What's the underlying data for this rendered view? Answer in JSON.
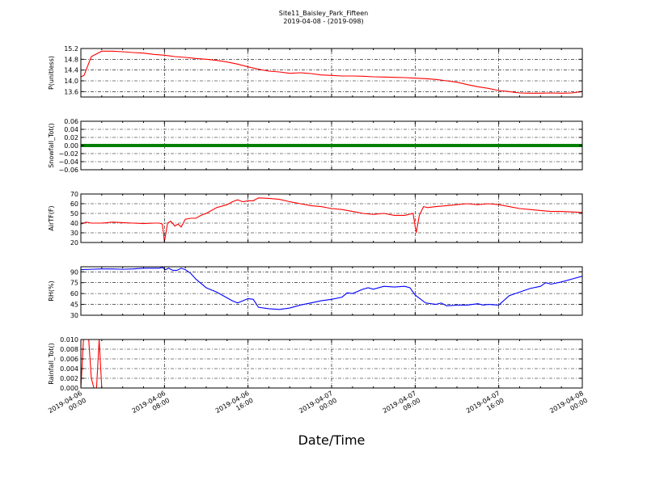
{
  "figure": {
    "title_line1": "Site11_Baisley_Park_Fifteen",
    "title_line2": "2019-04-08 - (2019-098)",
    "xlabel": "Date/Time"
  },
  "chart_data": [
    {
      "type": "line",
      "ylabel": "P(unitless)",
      "ylim": [
        13.4,
        15.2
      ],
      "yticks": [
        13.6,
        14.0,
        14.4,
        14.8,
        15.2
      ],
      "ytick_labels": [
        "13.6",
        "14.0",
        "14.4",
        "14.8",
        "15.2"
      ],
      "color": "#ff0000",
      "grid": true,
      "series": [
        {
          "x": [
            0,
            0.3,
            0.6,
            1,
            2,
            3,
            4,
            5,
            6,
            7,
            8,
            9,
            10,
            11,
            12,
            13,
            14,
            15,
            16,
            17,
            18,
            19,
            20,
            21,
            22,
            23,
            24,
            25,
            26,
            27,
            28,
            29,
            30,
            31,
            32,
            33,
            34,
            35,
            36,
            37,
            38,
            39,
            40,
            41,
            42,
            43,
            44,
            45,
            46,
            47,
            48
          ],
          "y": [
            14.15,
            14.2,
            14.5,
            14.9,
            15.1,
            15.1,
            15.08,
            15.05,
            15.03,
            14.98,
            14.95,
            14.9,
            14.87,
            14.83,
            14.8,
            14.76,
            14.7,
            14.62,
            14.52,
            14.43,
            14.36,
            14.33,
            14.28,
            14.3,
            14.27,
            14.22,
            14.2,
            14.18,
            14.18,
            14.17,
            14.15,
            14.14,
            14.13,
            14.12,
            14.1,
            14.08,
            14.05,
            14.0,
            13.95,
            13.86,
            13.78,
            13.72,
            13.64,
            13.6,
            13.55,
            13.54,
            13.54,
            13.55,
            13.54,
            13.55,
            13.6
          ]
        }
      ]
    },
    {
      "type": "line",
      "ylabel": "Snowfall_Tot()",
      "ylim": [
        -0.06,
        0.06
      ],
      "yticks": [
        -0.06,
        -0.04,
        -0.02,
        0.0,
        0.02,
        0.04,
        0.06
      ],
      "ytick_labels": [
        "−0.06",
        "−0.04",
        "−0.02",
        "0.00",
        "0.02",
        "0.04",
        "0.06"
      ],
      "color": "#008000",
      "grid": true,
      "series": [
        {
          "x": [
            0,
            48
          ],
          "y": [
            0,
            0
          ]
        }
      ]
    },
    {
      "type": "line",
      "ylabel": "AirTF(F)",
      "ylim": [
        20,
        70
      ],
      "yticks": [
        20,
        30,
        40,
        50,
        60,
        70
      ],
      "ytick_labels": [
        "20",
        "30",
        "40",
        "50",
        "60",
        "70"
      ],
      "color": "#ff0000",
      "grid": true,
      "series": [
        {
          "x": [
            0,
            0.5,
            1,
            2,
            3,
            4,
            5,
            6,
            7,
            7.5,
            7.8,
            8.0,
            8.3,
            8.6,
            9,
            9.3,
            9.6,
            10,
            10.5,
            11,
            11.5,
            12,
            13,
            14,
            14.5,
            15,
            15.5,
            16,
            16.5,
            17,
            18,
            19,
            20,
            21,
            22,
            23,
            24,
            25,
            26,
            27,
            28,
            29,
            30,
            31,
            31.8,
            32.1,
            32.4,
            32.8,
            33.2,
            34,
            35,
            36,
            37,
            38,
            39,
            40,
            41,
            42,
            43,
            44,
            45,
            46,
            47,
            48
          ],
          "y": [
            39,
            41,
            40,
            40,
            41,
            40.5,
            40,
            39.5,
            40,
            40,
            39,
            21,
            40,
            42,
            37,
            39,
            36,
            44,
            45,
            45,
            48,
            50,
            56,
            59,
            62,
            64,
            62,
            63,
            63,
            66,
            65.5,
            64.5,
            62,
            60,
            58,
            57,
            55,
            54,
            52,
            50,
            49,
            50,
            48,
            48,
            50,
            30,
            48,
            57,
            56,
            57,
            58,
            59,
            60,
            59,
            60,
            59,
            57,
            55,
            54,
            53,
            52,
            52,
            51.5,
            51
          ]
        }
      ]
    },
    {
      "type": "line",
      "ylabel": "RH(%)",
      "ylim": [
        30,
        97
      ],
      "yticks": [
        30,
        45,
        60,
        75,
        90
      ],
      "ytick_labels": [
        "30",
        "45",
        "60",
        "75",
        "90"
      ],
      "color": "#0000ff",
      "grid": true,
      "series": [
        {
          "x": [
            0,
            1,
            2,
            3,
            4,
            5,
            6,
            7,
            7.5,
            7.8,
            8.1,
            8.4,
            8.8,
            9.2,
            9.6,
            10,
            10.5,
            11,
            12,
            13,
            14,
            14.5,
            15,
            15.5,
            16,
            16.5,
            17,
            18,
            19,
            20,
            21,
            22,
            23,
            24,
            25,
            25.5,
            26,
            27,
            27.5,
            28,
            29,
            30,
            31,
            31.5,
            32,
            33,
            34,
            34.5,
            35,
            36,
            37,
            38,
            38.5,
            39,
            40,
            41,
            42,
            43,
            44,
            44.5,
            45,
            46,
            47,
            48
          ],
          "y": [
            93,
            93.5,
            94,
            94,
            93.5,
            94,
            95,
            95,
            95,
            96,
            93,
            95,
            92,
            92,
            95,
            93,
            88,
            80,
            68,
            62,
            54,
            50,
            47,
            50,
            53,
            52,
            41,
            39,
            38,
            40,
            44,
            47,
            50,
            52,
            55,
            61,
            60,
            66,
            68,
            66,
            70,
            69,
            70,
            68,
            58,
            47,
            45,
            47,
            43,
            44,
            44,
            46,
            44,
            45,
            44,
            57,
            62,
            67,
            70,
            75,
            73,
            76,
            80,
            84
          ]
        }
      ]
    },
    {
      "type": "line",
      "ylabel": "Rainfall_Tot()",
      "ylim": [
        0.0,
        0.01
      ],
      "yticks": [
        0.0,
        0.002,
        0.004,
        0.006,
        0.008,
        0.01
      ],
      "ytick_labels": [
        "0.000",
        "0.002",
        "0.004",
        "0.006",
        "0.008",
        "0.010"
      ],
      "color": "#ff0000",
      "grid": true,
      "series": [
        {
          "x": [
            0,
            0.25,
            0.5,
            0.75,
            1.0,
            1.25,
            1.5,
            1.75,
            2.0,
            2.25,
            48
          ],
          "y": [
            0,
            0.01,
            0.01,
            0.01,
            0.002,
            0,
            0,
            0.01,
            0,
            0,
            0
          ]
        }
      ]
    }
  ],
  "xaxis": {
    "range_hours": [
      0,
      48
    ],
    "ticks_hours": [
      0,
      8,
      16,
      24,
      32,
      40,
      48
    ],
    "tick_labels": [
      [
        "2019-04-06",
        "00:00"
      ],
      [
        "2019-04-06",
        "08:00"
      ],
      [
        "2019-04-06",
        "16:00"
      ],
      [
        "2019-04-07",
        "00:00"
      ],
      [
        "2019-04-07",
        "08:00"
      ],
      [
        "2019-04-07",
        "16:00"
      ],
      [
        "2019-04-08",
        "00:00"
      ]
    ]
  }
}
